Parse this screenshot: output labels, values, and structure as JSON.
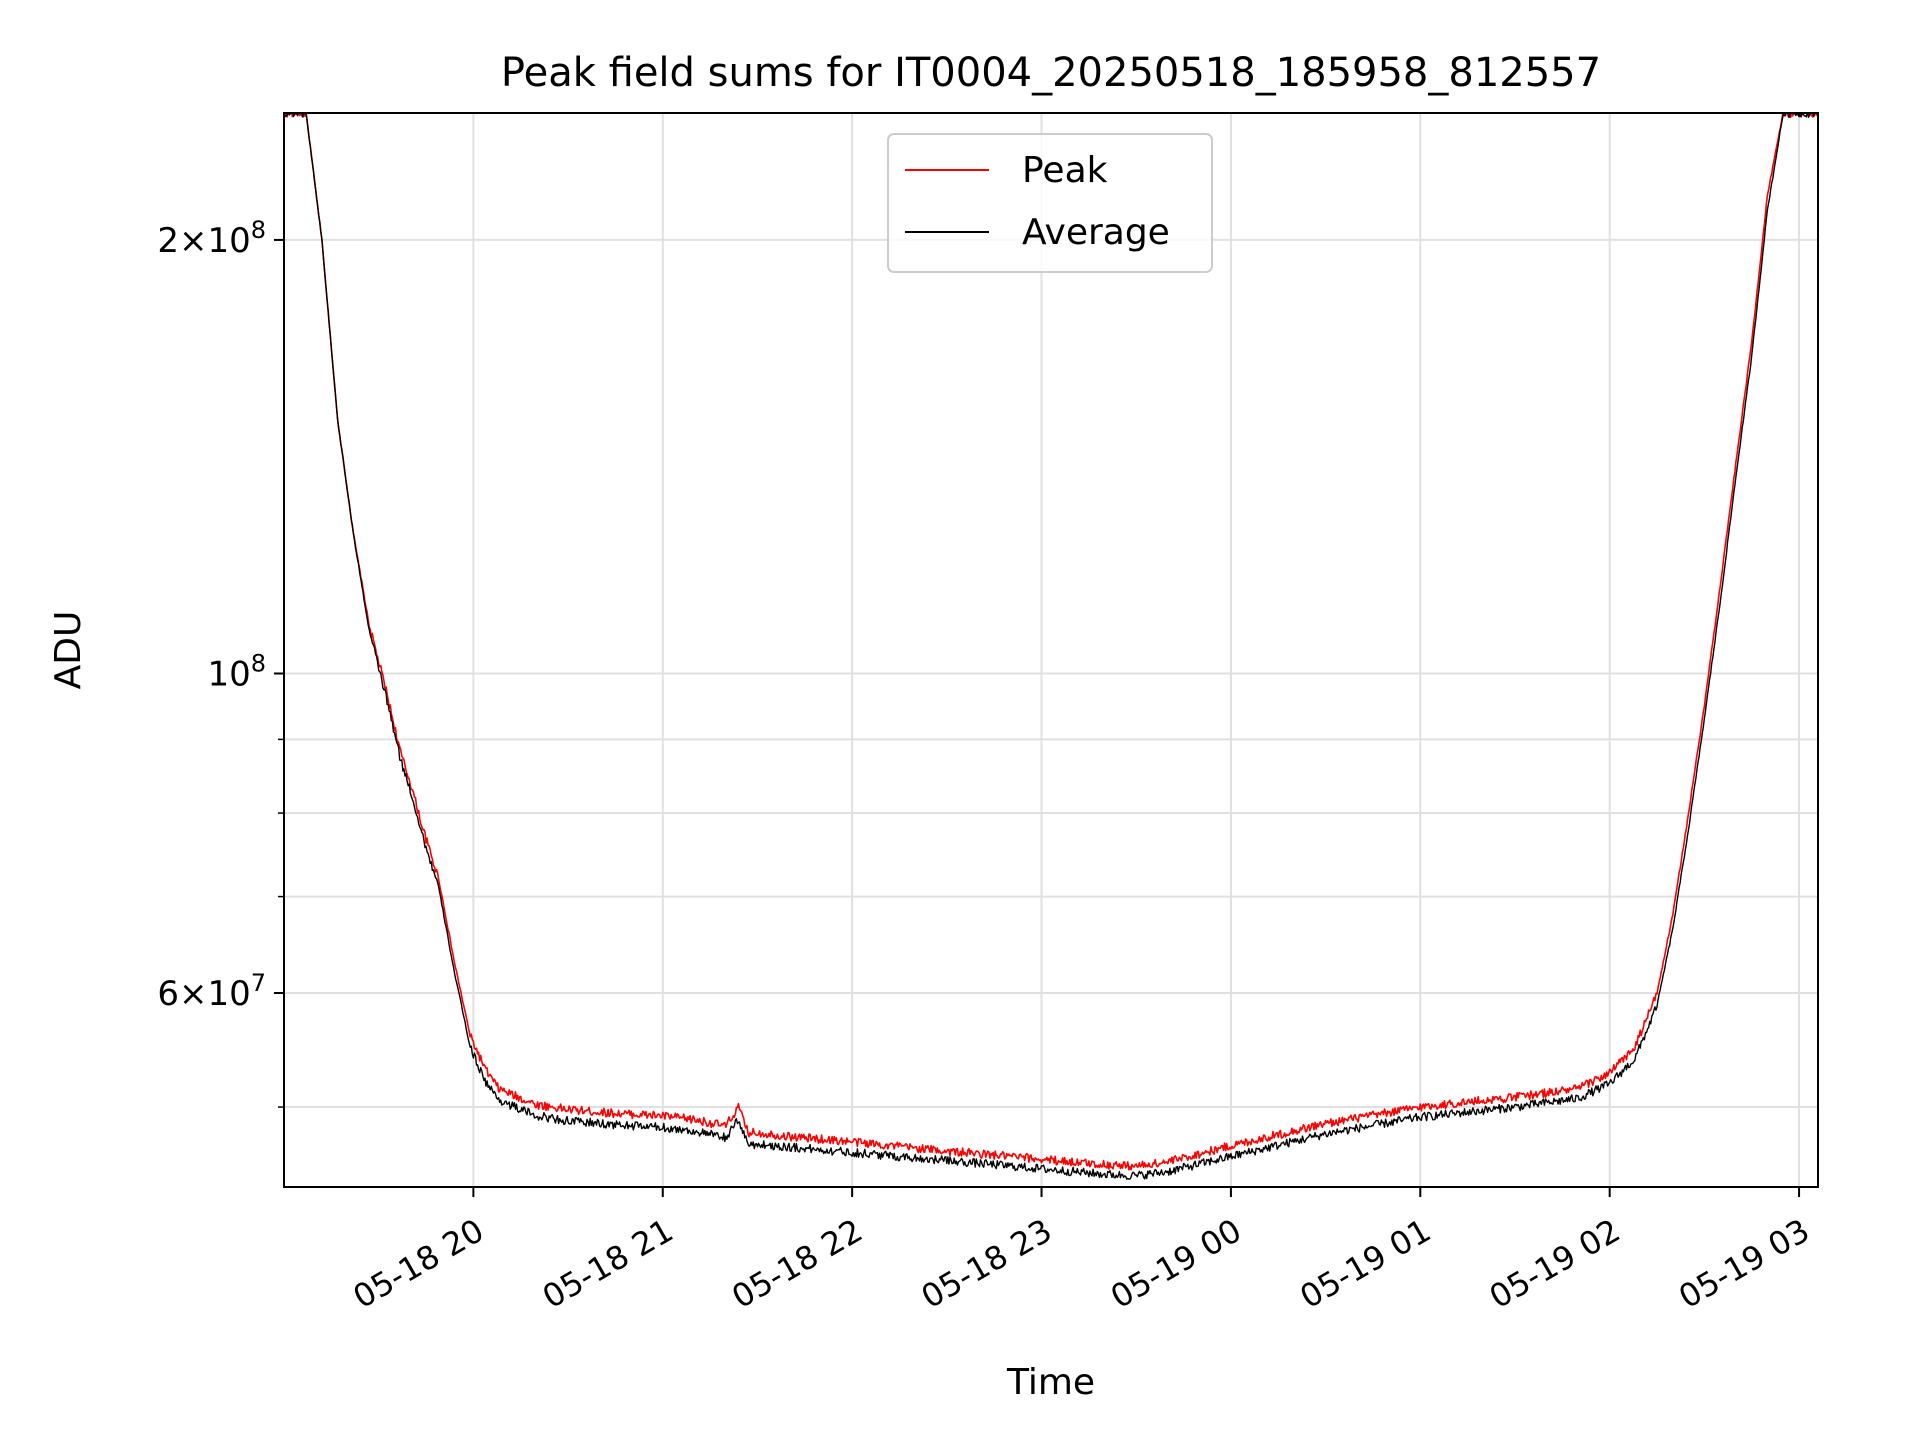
{
  "chart_data": {
    "type": "line",
    "title": "Peak field sums for IT0004_20250518_185958_812557",
    "xlabel": "Time",
    "ylabel": "ADU",
    "y_scale": "log",
    "x_tick_labels": [
      "05-18 20",
      "05-18 21",
      "05-18 22",
      "05-18 23",
      "05-19 00",
      "05-19 01",
      "05-19 02",
      "05-19 03"
    ],
    "x_tick_values": [
      "2025-05-18 20:00",
      "2025-05-18 21:00",
      "2025-05-18 22:00",
      "2025-05-18 23:00",
      "2025-05-19 00:00",
      "2025-05-19 01:00",
      "2025-05-19 02:00",
      "2025-05-19 03:00"
    ],
    "xlim": [
      "2025-05-18 19:00",
      "2025-05-19 03:06"
    ],
    "ylim": [
      44000000,
      245000000
    ],
    "y_major_ticks": [
      {
        "value": 60000000,
        "mantissa": "6",
        "exponent": "7"
      },
      {
        "value": 100000000,
        "mantissa": "",
        "exponent": "8"
      },
      {
        "value": 200000000,
        "mantissa": "2",
        "exponent": "8"
      }
    ],
    "y_minor_ticks": [
      50000000,
      70000000,
      80000000,
      90000000,
      300000000
    ],
    "grid": true,
    "legend": "upper center",
    "series": [
      {
        "name": "Peak",
        "color": "#ff0000",
        "x": [
          "2025-05-18 19:00",
          "2025-05-18 19:07",
          "2025-05-18 19:12",
          "2025-05-18 19:17",
          "2025-05-18 19:22",
          "2025-05-18 19:27",
          "2025-05-18 19:32",
          "2025-05-18 19:37",
          "2025-05-18 19:40",
          "2025-05-18 19:42",
          "2025-05-18 19:44",
          "2025-05-18 19:49",
          "2025-05-18 19:54",
          "2025-05-18 19:59",
          "2025-05-18 20:04",
          "2025-05-18 20:08",
          "2025-05-18 20:14",
          "2025-05-18 20:20",
          "2025-05-18 20:30",
          "2025-05-18 20:45",
          "2025-05-18 21:00",
          "2025-05-18 21:10",
          "2025-05-18 21:20",
          "2025-05-18 21:24",
          "2025-05-18 21:27",
          "2025-05-18 21:30",
          "2025-05-18 21:40",
          "2025-05-18 22:00",
          "2025-05-18 22:30",
          "2025-05-18 23:00",
          "2025-05-18 23:20",
          "2025-05-18 23:30",
          "2025-05-18 23:40",
          "2025-05-19 00:00",
          "2025-05-19 00:30",
          "2025-05-19 01:00",
          "2025-05-19 01:30",
          "2025-05-19 01:50",
          "2025-05-19 02:00",
          "2025-05-19 02:08",
          "2025-05-19 02:15",
          "2025-05-19 02:20",
          "2025-05-19 02:25",
          "2025-05-19 02:30",
          "2025-05-19 02:35",
          "2025-05-19 02:40",
          "2025-05-19 02:45",
          "2025-05-19 02:50",
          "2025-05-19 02:55",
          "2025-05-19 03:00",
          "2025-05-19 03:06"
        ],
        "values": [
          245000000,
          245000000,
          200000000,
          150000000,
          125000000,
          108000000,
          98000000,
          88000000,
          84000000,
          81000000,
          78000000,
          72000000,
          63000000,
          56000000,
          53000000,
          51500000,
          50800000,
          50200000,
          49800000,
          49500000,
          49300000,
          49000000,
          48500000,
          50000000,
          48000000,
          48000000,
          47700000,
          47300000,
          46600000,
          46000000,
          45600000,
          45500000,
          45800000,
          47000000,
          48700000,
          50000000,
          50800000,
          51500000,
          52800000,
          55000000,
          60000000,
          68000000,
          80000000,
          95000000,
          115000000,
          140000000,
          170000000,
          215000000,
          245000000,
          245000000,
          245000000
        ]
      },
      {
        "name": "Average",
        "color": "#000000",
        "x": [
          "2025-05-18 19:00",
          "2025-05-18 19:07",
          "2025-05-18 19:12",
          "2025-05-18 19:17",
          "2025-05-18 19:22",
          "2025-05-18 19:27",
          "2025-05-18 19:32",
          "2025-05-18 19:37",
          "2025-05-18 19:40",
          "2025-05-18 19:42",
          "2025-05-18 19:44",
          "2025-05-18 19:49",
          "2025-05-18 19:54",
          "2025-05-18 19:59",
          "2025-05-18 20:04",
          "2025-05-18 20:08",
          "2025-05-18 20:14",
          "2025-05-18 20:20",
          "2025-05-18 20:30",
          "2025-05-18 20:45",
          "2025-05-18 21:00",
          "2025-05-18 21:10",
          "2025-05-18 21:20",
          "2025-05-18 21:24",
          "2025-05-18 21:27",
          "2025-05-18 21:30",
          "2025-05-18 21:40",
          "2025-05-18 22:00",
          "2025-05-18 22:30",
          "2025-05-18 23:00",
          "2025-05-18 23:20",
          "2025-05-18 23:30",
          "2025-05-18 23:40",
          "2025-05-19 00:00",
          "2025-05-19 00:30",
          "2025-05-19 01:00",
          "2025-05-19 01:30",
          "2025-05-19 01:50",
          "2025-05-19 02:00",
          "2025-05-19 02:08",
          "2025-05-19 02:15",
          "2025-05-19 02:20",
          "2025-05-19 02:25",
          "2025-05-19 02:30",
          "2025-05-19 02:35",
          "2025-05-19 02:40",
          "2025-05-19 02:45",
          "2025-05-19 02:50",
          "2025-05-19 02:55",
          "2025-05-19 03:00",
          "2025-05-19 03:06"
        ],
        "values": [
          245000000,
          245000000,
          200000000,
          150000000,
          125000000,
          107000000,
          97000000,
          87000000,
          83000000,
          80000000,
          77000000,
          71000000,
          62000000,
          55000000,
          52000000,
          50600000,
          49900000,
          49300000,
          48900000,
          48600000,
          48400000,
          48100000,
          47600000,
          49000000,
          47100000,
          47100000,
          46900000,
          46500000,
          45900000,
          45300000,
          44900000,
          44800000,
          45100000,
          46200000,
          47900000,
          49200000,
          50000000,
          50700000,
          51900000,
          54000000,
          58800000,
          66500000,
          78000000,
          93000000,
          112000000,
          137000000,
          166000000,
          210000000,
          245000000,
          245000000,
          245000000
        ]
      }
    ]
  }
}
